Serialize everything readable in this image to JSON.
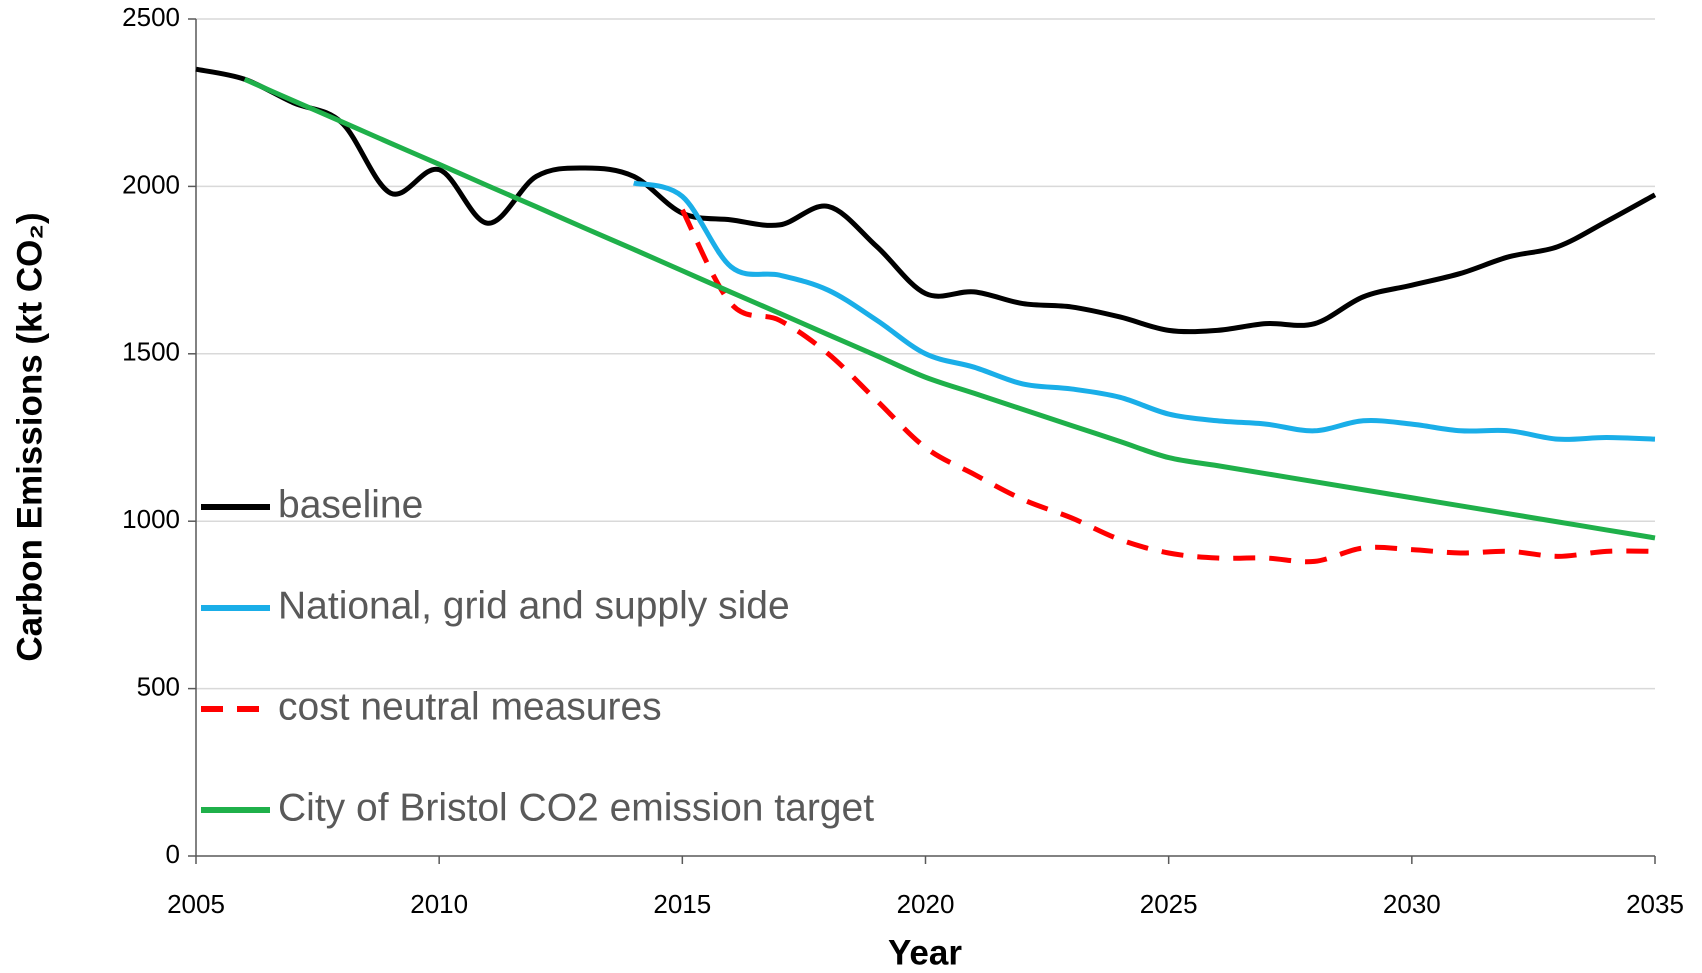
{
  "chart_data": {
    "type": "line",
    "xlabel": "Year",
    "ylabel": "Carbon Emissions (kt CO₂)",
    "x": [
      2005,
      2006,
      2007,
      2008,
      2009,
      2010,
      2011,
      2012,
      2013,
      2014,
      2015,
      2016,
      2017,
      2018,
      2019,
      2020,
      2021,
      2022,
      2023,
      2024,
      2025,
      2026,
      2027,
      2028,
      2029,
      2030,
      2031,
      2032,
      2033,
      2034,
      2035
    ],
    "xlim": [
      2005,
      2035
    ],
    "xticks": [
      2005,
      2010,
      2015,
      2020,
      2025,
      2030,
      2035
    ],
    "ylim": [
      0,
      2500
    ],
    "yticks": [
      0,
      500,
      1000,
      1500,
      2000,
      2500
    ],
    "grid": true,
    "legend": "left",
    "series": [
      {
        "name": "baseline",
        "color": "#000000",
        "dash": false,
        "values": [
          2350,
          2320,
          2250,
          2190,
          1980,
          2050,
          1890,
          2030,
          2055,
          2030,
          1920,
          1900,
          1885,
          1940,
          1820,
          1680,
          1685,
          1650,
          1640,
          1610,
          1570,
          1570,
          1590,
          1590,
          1670,
          1705,
          1740,
          1790,
          1820,
          1895,
          1975
        ]
      },
      {
        "name": "National, grid and supply side",
        "color": "#1aaee8",
        "dash": false,
        "values": [
          null,
          null,
          null,
          null,
          null,
          null,
          null,
          null,
          null,
          2010,
          1970,
          1760,
          1735,
          1690,
          1600,
          1500,
          1460,
          1410,
          1395,
          1370,
          1320,
          1300,
          1290,
          1270,
          1300,
          1290,
          1270,
          1270,
          1245,
          1250,
          1245
        ]
      },
      {
        "name": "cost neutral measures",
        "color": "#ff0000",
        "dash": true,
        "values": [
          null,
          null,
          null,
          null,
          null,
          null,
          null,
          null,
          null,
          null,
          1930,
          1650,
          1600,
          1500,
          1360,
          1220,
          1140,
          1065,
          1010,
          945,
          905,
          890,
          890,
          880,
          920,
          915,
          905,
          910,
          895,
          910,
          910
        ]
      },
      {
        "name": "City of Bristol CO2 emission target",
        "color": "#1fb04a",
        "dash": false,
        "values": [
          null,
          2320,
          2256,
          2193,
          2129,
          2066,
          2002,
          1939,
          1875,
          1812,
          1748,
          1684,
          1621,
          1557,
          1494,
          1430,
          1382,
          1334,
          1286,
          1238,
          1190,
          1166,
          1142,
          1118,
          1094,
          1070,
          1046,
          1022,
          998,
          974,
          950
        ]
      }
    ]
  }
}
